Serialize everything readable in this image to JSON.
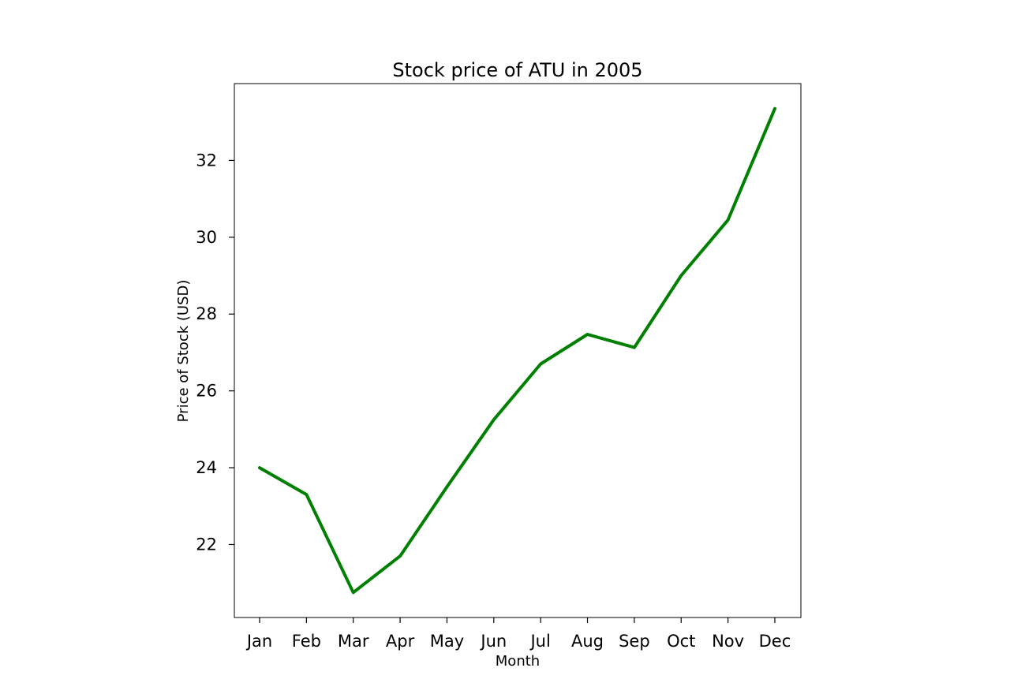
{
  "chart_data": {
    "type": "line",
    "title": "Stock price of ATU in 2005",
    "xlabel": "Month",
    "ylabel": "Price of Stock (USD)",
    "categories": [
      "Jan",
      "Feb",
      "Mar",
      "Apr",
      "May",
      "Jun",
      "Jul",
      "Aug",
      "Sep",
      "Oct",
      "Nov",
      "Dec"
    ],
    "series": [
      {
        "values": [
          24.0,
          23.3,
          20.75,
          21.7,
          23.5,
          25.25,
          26.7,
          27.47,
          27.13,
          29.0,
          30.45,
          33.35
        ],
        "color": "#008000"
      }
    ],
    "yticks": [
      22,
      24,
      26,
      28,
      30,
      32
    ],
    "ylim": [
      20.1,
      34.0
    ],
    "grid": false,
    "legend": false
  }
}
